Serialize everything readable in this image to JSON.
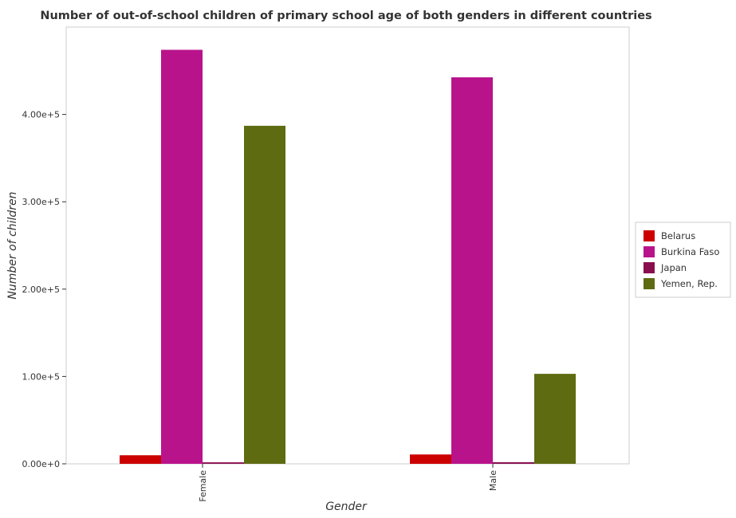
{
  "chart_data": {
    "type": "bar",
    "title": "Number of out-of-school children of primary school age of both genders in different countries",
    "xlabel": "Gender",
    "ylabel": "Number of children",
    "categories": [
      "Female",
      "Male"
    ],
    "ylim": [
      0,
      500000
    ],
    "yticks": [
      0,
      100000,
      200000,
      300000,
      400000
    ],
    "ytick_labels": [
      "0.00e+0",
      "1.00e+5",
      "2.00e+5",
      "3.00e+5",
      "4.00e+5"
    ],
    "series": [
      {
        "name": "Belarus",
        "color": "#cc0000",
        "values": [
          9800,
          10700
        ]
      },
      {
        "name": "Burkina Faso",
        "color": "#b9138c",
        "values": [
          474000,
          442500
        ]
      },
      {
        "name": "Japan",
        "color": "#880e4f",
        "values": [
          1700,
          1800
        ]
      },
      {
        "name": "Yemen, Rep.",
        "color": "#5e6b10",
        "values": [
          387000,
          103000
        ]
      }
    ],
    "legend_position": "right",
    "grid": false
  }
}
